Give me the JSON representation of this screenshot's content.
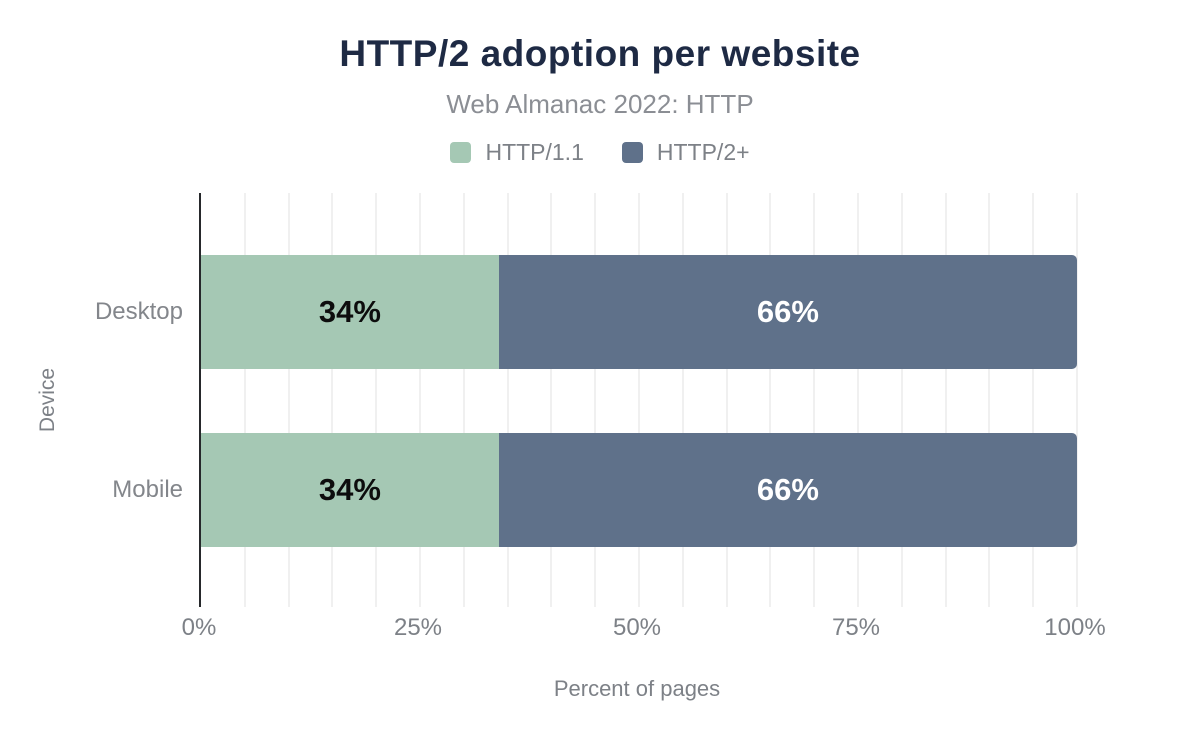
{
  "chart": {
    "title": "HTTP/2 adoption per website",
    "subtitle": "Web Almanac 2022: HTTP"
  },
  "chart_data": {
    "type": "bar",
    "orientation": "horizontal",
    "stacked": true,
    "title": "HTTP/2 adoption per website",
    "subtitle": "Web Almanac 2022: HTTP",
    "categories": [
      "Desktop",
      "Mobile"
    ],
    "series": [
      {
        "name": "HTTP/1.1",
        "values": [
          34,
          34
        ],
        "color": "#a5c8b4",
        "label_color": "#0d0d0d"
      },
      {
        "name": "HTTP/2+",
        "values": [
          66,
          66
        ],
        "color": "#5f718a",
        "label_color": "#ffffff"
      }
    ],
    "xlabel": "Percent of pages",
    "ylabel": "Device",
    "xlim": [
      0,
      100
    ],
    "value_suffix": "%",
    "xticks": [
      {
        "value": 0,
        "label": "0%"
      },
      {
        "value": 25,
        "label": "25%"
      },
      {
        "value": 50,
        "label": "50%"
      },
      {
        "value": 75,
        "label": "75%"
      },
      {
        "value": 100,
        "label": "100%"
      }
    ],
    "grid": {
      "show": true,
      "step_percent": 5,
      "color": "#f0f0f0"
    },
    "legend_position": "top"
  },
  "colors": {
    "background": "#ffffff",
    "title": "#1e2a44",
    "subtitle": "#8b8e94",
    "secondary_text": "#7d8187",
    "axis_line": "#26282b",
    "gridline": "#f0f0f0"
  }
}
